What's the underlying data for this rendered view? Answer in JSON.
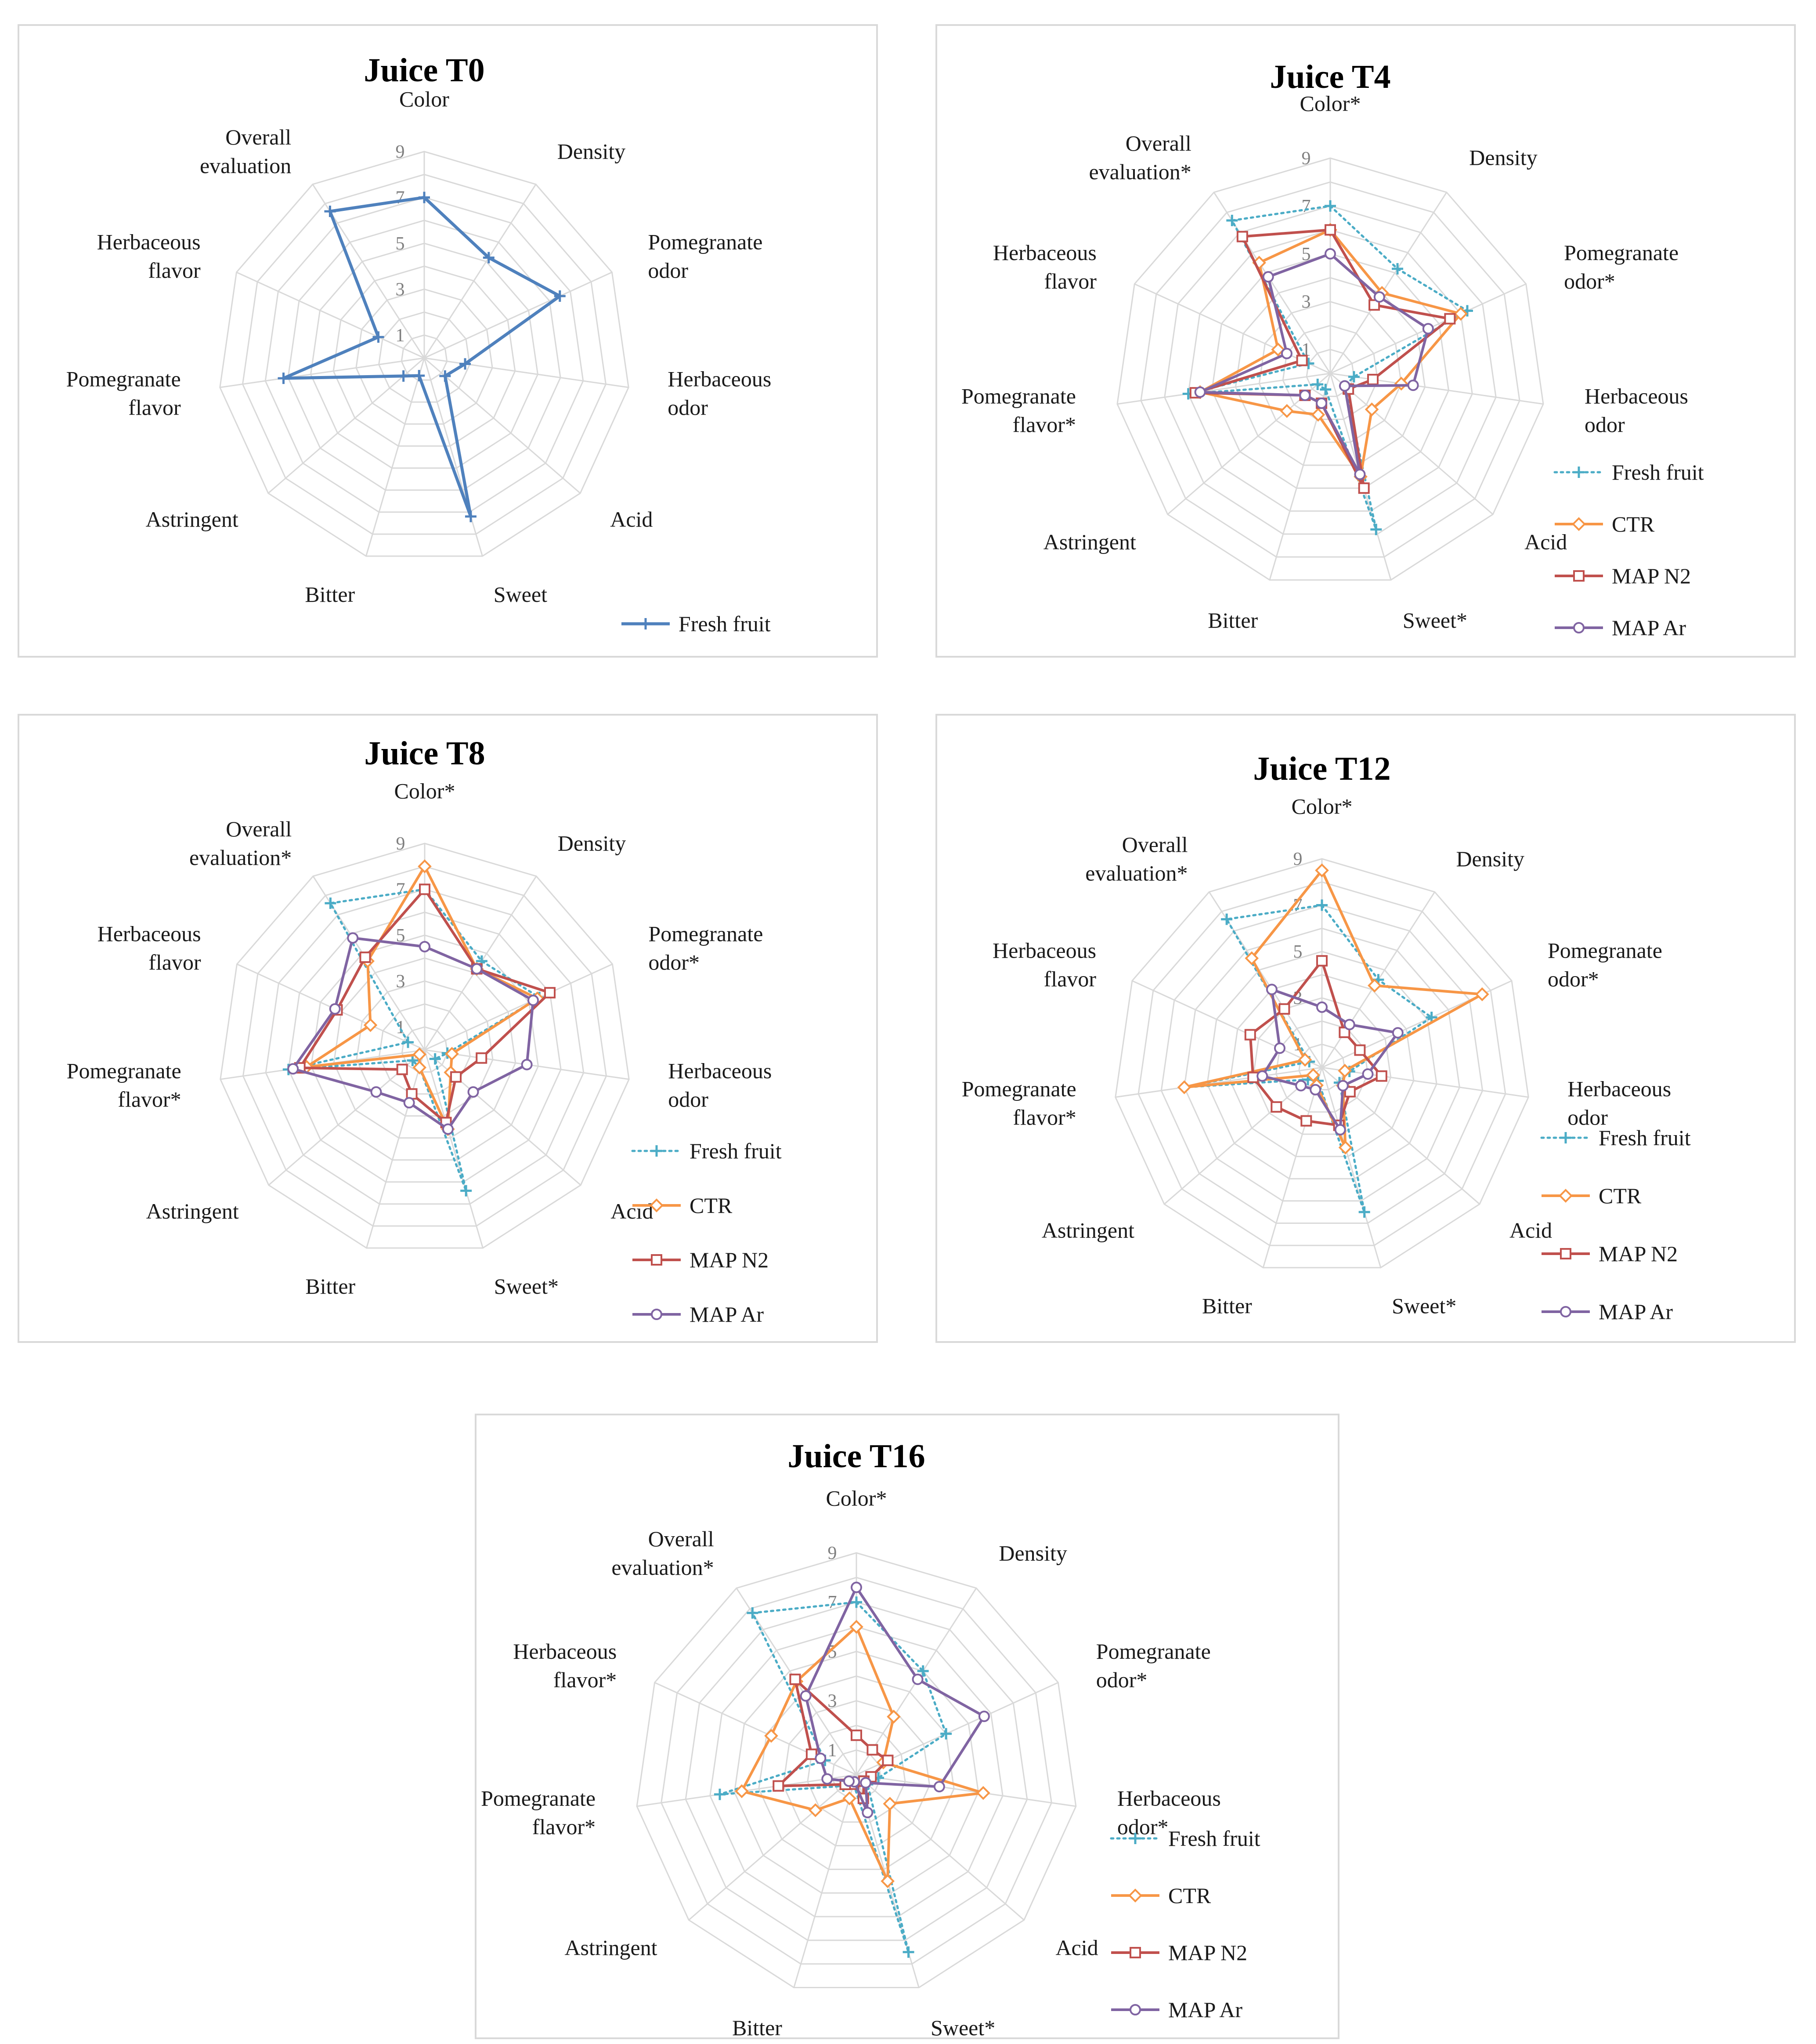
{
  "attributes": [
    "Color",
    "Density",
    "Pomegranate odor",
    "Herbaceous odor",
    "Acid",
    "Sweet",
    "Bitter",
    "Astringent",
    "Pomegranate flavor",
    "Herbaceous flavor",
    "Overall evaluation"
  ],
  "series_styles": {
    "Fresh fruit": {
      "color": "#4bacc6",
      "marker": "plus",
      "dash": "dotted"
    },
    "CTR": {
      "color": "#f79646",
      "marker": "diamond",
      "dash": "solid"
    },
    "MAP N2": {
      "color": "#c0504d",
      "marker": "square",
      "dash": "solid"
    },
    "MAP Ar": {
      "color": "#8064a2",
      "marker": "circle",
      "dash": "solid"
    }
  },
  "chart_data": [
    {
      "type": "radar",
      "title": "Juice T0",
      "axis_labels": [
        "Color",
        "Density",
        "Pomegranate odor",
        "Herbaceous odor",
        "Acid",
        "Sweet",
        "Bitter",
        "Astringent",
        "Pomegranate flavor",
        "Herbaceous flavor",
        "Overall evaluation"
      ],
      "tick_labels": [
        "1",
        "3",
        "5",
        "7",
        "9"
      ],
      "range": [
        0,
        9
      ],
      "legend": [
        "Fresh fruit"
      ],
      "single_style": {
        "color": "#4f81bd",
        "marker": "plus",
        "dash": "solid"
      },
      "series": [
        {
          "name": "Fresh fruit",
          "values": [
            7.0,
            5.2,
            6.5,
            1.8,
            1.2,
            7.2,
            0.8,
            1.2,
            6.2,
            2.2,
            7.6
          ]
        }
      ]
    },
    {
      "type": "radar",
      "title": "Juice T4",
      "axis_labels": [
        "Color*",
        "Density",
        "Pomegranate odor*",
        "Herbaceous odor",
        "Acid",
        "Sweet*",
        "Bitter",
        "Astringent",
        "Pomegranate flavor*",
        "Herbaceous flavor",
        "Overall evaluation*"
      ],
      "tick_labels": [
        "1",
        "3",
        "5",
        "7",
        "9"
      ],
      "range": [
        0,
        9
      ],
      "legend": [
        "Fresh fruit",
        "CTR",
        "MAP N2",
        "MAP Ar"
      ],
      "series": [
        {
          "name": "Fresh fruit",
          "values": [
            7.0,
            5.2,
            6.3,
            1.0,
            0.8,
            6.8,
            0.7,
            0.7,
            6.0,
            1.0,
            7.6
          ]
        },
        {
          "name": "CTR",
          "values": [
            6.0,
            4.0,
            6.0,
            3.0,
            2.3,
            4.5,
            1.8,
            2.4,
            5.5,
            2.4,
            5.5
          ]
        },
        {
          "name": "MAP N2",
          "values": [
            6.0,
            3.4,
            5.5,
            1.8,
            1.0,
            5.0,
            1.3,
            1.4,
            5.7,
            1.3,
            6.8
          ]
        },
        {
          "name": "MAP Ar",
          "values": [
            5.0,
            3.8,
            4.5,
            3.5,
            0.8,
            4.4,
            1.3,
            1.4,
            5.5,
            2.0,
            4.8
          ]
        }
      ]
    },
    {
      "type": "radar",
      "title": "Juice T8",
      "axis_labels": [
        "Color*",
        "Density",
        "Pomegranate odor*",
        "Herbaceous odor",
        "Acid",
        "Sweet*",
        "Bitter",
        "Astringent",
        "Pomegranate flavor*",
        "Herbaceous flavor",
        "Overall evaluation*"
      ],
      "tick_labels": [
        "1",
        "3",
        "5",
        "7",
        "9"
      ],
      "range": [
        0,
        9
      ],
      "legend": [
        "Fresh fruit",
        "CTR",
        "MAP N2",
        "MAP Ar"
      ],
      "series": [
        {
          "name": "Fresh fruit",
          "values": [
            7.0,
            4.6,
            5.5,
            1.0,
            0.6,
            6.4,
            0.8,
            0.7,
            6.0,
            0.8,
            7.6
          ]
        },
        {
          "name": "CTR",
          "values": [
            8.0,
            4.2,
            5.4,
            1.2,
            1.5,
            3.6,
            0.8,
            0.3,
            5.2,
            2.6,
            4.6
          ]
        },
        {
          "name": "MAP N2",
          "values": [
            7.0,
            4.2,
            6.0,
            2.5,
            1.8,
            3.3,
            2.0,
            1.3,
            5.5,
            4.2,
            4.8
          ]
        },
        {
          "name": "MAP Ar",
          "values": [
            4.5,
            4.2,
            5.2,
            4.5,
            2.8,
            3.6,
            2.4,
            2.8,
            5.8,
            4.3,
            5.8
          ]
        }
      ]
    },
    {
      "type": "radar",
      "title": "Juice T12",
      "axis_labels": [
        "Color*",
        "Density",
        "Pomegranate odor*",
        "Herbaceous odor",
        "Acid",
        "Sweet*",
        "Bitter",
        "Astringent",
        "Pomegranate flavor*",
        "Herbaceous flavor",
        "Overall evaluation*"
      ],
      "tick_labels": [
        "1",
        "3",
        "5",
        "7",
        "9"
      ],
      "range": [
        0,
        9
      ],
      "legend": [
        "Fresh fruit",
        "CTR",
        "MAP N2",
        "MAP Ar"
      ],
      "series": [
        {
          "name": "Fresh fruit",
          "values": [
            7.0,
            4.5,
            5.2,
            1.2,
            1.0,
            6.5,
            0.6,
            0.8,
            6.0,
            0.6,
            7.6
          ]
        },
        {
          "name": "CTR",
          "values": [
            8.5,
            4.2,
            7.6,
            1.0,
            1.2,
            3.6,
            0.8,
            0.5,
            6.0,
            0.8,
            5.6
          ]
        },
        {
          "name": "MAP N2",
          "values": [
            4.6,
            1.8,
            1.8,
            2.6,
            1.6,
            2.6,
            2.4,
            2.6,
            3.0,
            3.4,
            3.0
          ]
        },
        {
          "name": "MAP Ar",
          "values": [
            2.6,
            2.2,
            3.6,
            2.0,
            1.2,
            2.8,
            1.0,
            1.2,
            2.6,
            2.0,
            4.0
          ]
        }
      ]
    },
    {
      "type": "radar",
      "title": "Juice T16",
      "axis_labels": [
        "Color*",
        "Density",
        "Pomegranate odor*",
        "Herbaceous odor*",
        "Acid",
        "Sweet*",
        "Bitter",
        "Astringent",
        "Pomegranate flavor*",
        "Herbaceous flavor*",
        "Overall evaluation*"
      ],
      "tick_labels": [
        "1",
        "3",
        "5",
        "7",
        "9"
      ],
      "range": [
        0,
        9
      ],
      "legend": [
        "Fresh fruit",
        "CTR",
        "MAP N2",
        "MAP Ar"
      ],
      "series": [
        {
          "name": "Fresh fruit",
          "values": [
            7.0,
            5.0,
            4.0,
            0.9,
            0.6,
            7.5,
            0.4,
            0.7,
            5.6,
            1.4,
            7.8
          ]
        },
        {
          "name": "CTR",
          "values": [
            6.0,
            2.8,
            1.2,
            5.2,
            1.8,
            4.5,
            1.0,
            2.2,
            4.7,
            3.8,
            4.5
          ]
        },
        {
          "name": "MAP N2",
          "values": [
            1.6,
            1.2,
            1.4,
            0.6,
            0.4,
            1.0,
            0.4,
            0.6,
            3.2,
            2.0,
            4.6
          ]
        },
        {
          "name": "MAP Ar",
          "values": [
            7.6,
            4.6,
            5.7,
            3.4,
            0.5,
            1.6,
            0.3,
            0.4,
            1.2,
            1.6,
            3.8
          ]
        }
      ]
    }
  ]
}
